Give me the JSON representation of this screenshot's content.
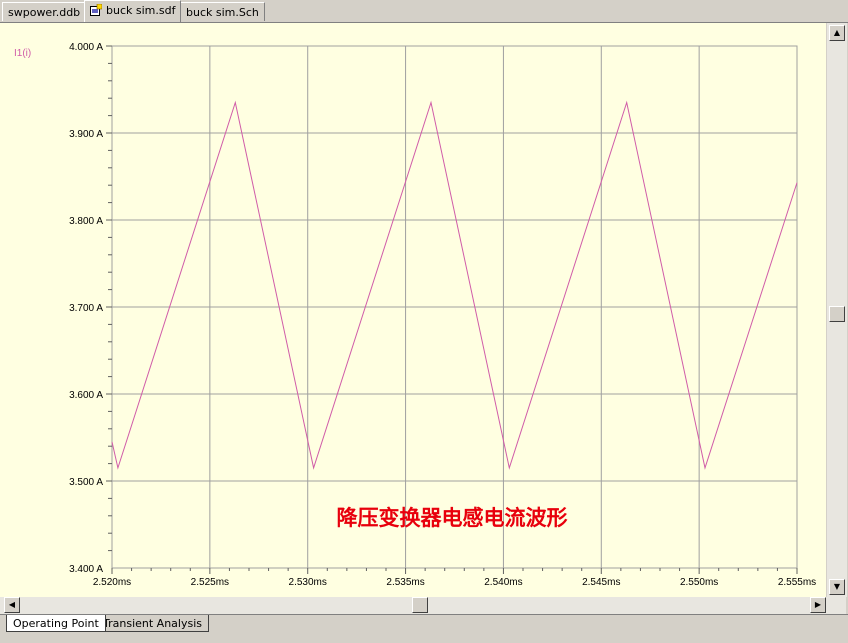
{
  "tabs": [
    {
      "label": "swpower.ddb",
      "active": false
    },
    {
      "label": "buck sim.sdf",
      "active": true
    },
    {
      "label": "buck sim.Sch",
      "active": false
    }
  ],
  "bottom_tabs": [
    {
      "label": "Operating Point",
      "active": true
    },
    {
      "label": "Transient Analysis",
      "active": false
    }
  ],
  "colors": {
    "plot_background": "#ffffe1",
    "waveform": "#d05ca8",
    "grid": "#a0a0a0",
    "annotation": "#e8000c"
  },
  "chart_data": {
    "type": "line",
    "title": "",
    "xlabel": "",
    "ylabel": "",
    "xlim": [
      2.52,
      2.555
    ],
    "ylim": [
      3.4,
      4.0
    ],
    "x_unit": "ms",
    "y_unit": "A",
    "x_ticks": [
      "2.520ms",
      "2.525ms",
      "2.530ms",
      "2.535ms",
      "2.540ms",
      "2.545ms",
      "2.550ms",
      "2.555ms"
    ],
    "y_ticks": [
      "4.000 A",
      "3.900 A",
      "3.800 A",
      "3.700 A",
      "3.600 A",
      "3.500 A",
      "3.400 A"
    ],
    "grid": true,
    "series": [
      {
        "name": "I1(i)",
        "x": [
          2.52,
          2.5203,
          2.5263,
          2.5303,
          2.5363,
          2.5403,
          2.5463,
          2.5503,
          2.555
        ],
        "y": [
          3.545,
          3.515,
          3.935,
          3.515,
          3.935,
          3.515,
          3.935,
          3.515,
          3.843
        ]
      }
    ],
    "annotation": "降压变换器电感电流波形"
  }
}
